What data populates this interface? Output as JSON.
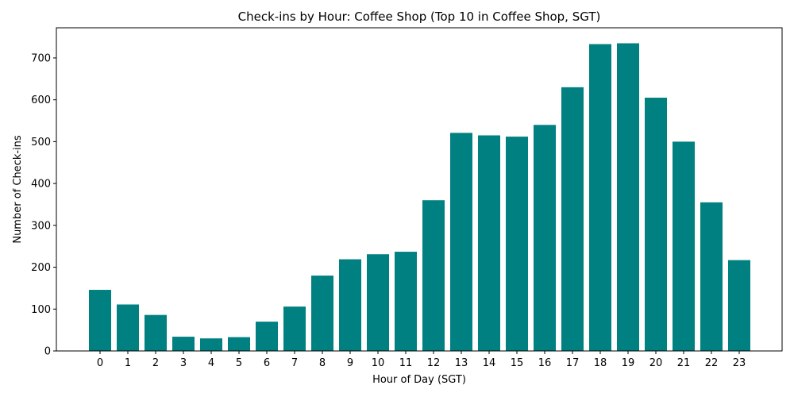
{
  "chart_data": {
    "type": "bar",
    "title": "Check-ins by Hour: Coffee Shop (Top 10 in Coffee Shop, SGT)",
    "xlabel": "Hour of Day (SGT)",
    "ylabel": "Number of Check-ins",
    "categories": [
      "0",
      "1",
      "2",
      "3",
      "4",
      "5",
      "6",
      "7",
      "8",
      "9",
      "10",
      "11",
      "12",
      "13",
      "14",
      "15",
      "16",
      "17",
      "18",
      "19",
      "20",
      "21",
      "22",
      "23"
    ],
    "values": [
      146,
      111,
      86,
      34,
      30,
      33,
      70,
      106,
      180,
      219,
      231,
      237,
      360,
      521,
      515,
      512,
      540,
      630,
      733,
      735,
      605,
      500,
      355,
      217
    ],
    "ylim": [
      0,
      772
    ],
    "yticks": [
      0,
      100,
      200,
      300,
      400,
      500,
      600,
      700
    ],
    "bar_color": "#008080",
    "grid": false,
    "legend": "none"
  }
}
